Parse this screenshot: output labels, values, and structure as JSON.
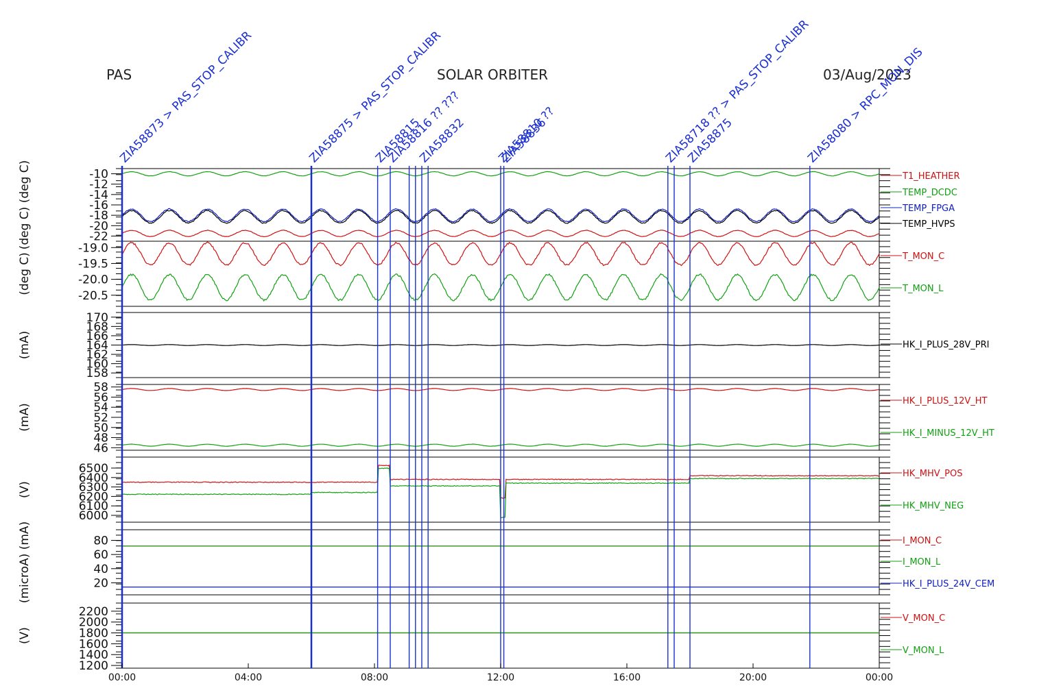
{
  "header": {
    "left": "PAS",
    "center": "SOLAR ORBITER",
    "right": "03/Aug/2023"
  },
  "x_axis": {
    "ticks": [
      "00:00",
      "04:00",
      "08:00",
      "12:00",
      "16:00",
      "20:00",
      "00:00"
    ],
    "range_hours": [
      0,
      24
    ]
  },
  "colors": {
    "red": "#d01010",
    "green": "#10a010",
    "blue": "#1020c0",
    "black": "#000000",
    "annotation": "#1a2fd0"
  },
  "annotations": {
    "event_hours": [
      0.0,
      6.0,
      8.1,
      8.5,
      9.1,
      9.3,
      9.5,
      9.7,
      12.0,
      12.1,
      17.3,
      17.5,
      18.0,
      21.8
    ],
    "labels": [
      {
        "hour": 0.0,
        "text": "ZIA58873 > PAS_STOP_CALIBR"
      },
      {
        "hour": 6.0,
        "text": "ZIA58875 > PAS_STOP_CALIBR"
      },
      {
        "hour": 8.1,
        "text": "ZIA58815"
      },
      {
        "hour": 8.5,
        "text": "ZIA58816 ?? ???"
      },
      {
        "hour": 9.5,
        "text": "ZIA58832"
      },
      {
        "hour": 12.0,
        "text": "ZIA58810 ??"
      },
      {
        "hour": 12.1,
        "text": "ZIA58836"
      },
      {
        "hour": 17.3,
        "text": "ZIA58718 ?? > PAS_STOP_CALIBR"
      },
      {
        "hour": 18.0,
        "text": "ZIA58875"
      },
      {
        "hour": 21.8,
        "text": "ZIA58080 > RPC_MON_DIS"
      }
    ]
  },
  "chart_data": [
    {
      "type": "line",
      "ylabel": "(deg C) (deg C)",
      "ylim": [
        -23,
        -9
      ],
      "yticks": [
        "-10",
        "-12",
        "-14",
        "-16",
        "-18",
        "-20",
        "-22"
      ],
      "series": [
        {
          "name": "T1_HEATHER",
          "color": "#d01010",
          "mean": -21.5,
          "amp": 0.6
        },
        {
          "name": "TEMP_DCDC",
          "color": "#10a010",
          "mean": -10.0,
          "amp": 0.4
        },
        {
          "name": "TEMP_FPGA",
          "color": "#1020c0",
          "mean": -18.0,
          "amp": 1.2
        },
        {
          "name": "TEMP_HVPS",
          "color": "#000000",
          "mean": -18.3,
          "amp": 1.2
        }
      ]
    },
    {
      "type": "line",
      "ylabel": "(deg C)",
      "ylim": [
        -20.85,
        -18.8
      ],
      "yticks": [
        "-19.0",
        "-19.5",
        "-20.0",
        "-20.5"
      ],
      "series": [
        {
          "name": "T_MON_C",
          "color": "#d01010",
          "mean": -19.2,
          "amp": 0.35
        },
        {
          "name": "T_MON_L",
          "color": "#10a010",
          "mean": -20.25,
          "amp": 0.4
        }
      ]
    },
    {
      "type": "line",
      "ylabel": "(mA)",
      "ylim": [
        157,
        171
      ],
      "yticks": [
        "170",
        "168",
        "166",
        "164",
        "162",
        "160",
        "158"
      ],
      "series": [
        {
          "name": "HK_I_PLUS_28V_PRI",
          "color": "#000000",
          "mean": 164.0,
          "amp": 0.1
        }
      ]
    },
    {
      "type": "line",
      "ylabel": "(mA)",
      "ylim": [
        45.5,
        58.5
      ],
      "yticks": [
        "58",
        "56",
        "54",
        "52",
        "50",
        "48",
        "46"
      ],
      "series": [
        {
          "name": "HK_I_PLUS_12V_HT",
          "color": "#d01010",
          "mean": 57.5,
          "amp": 0.2
        },
        {
          "name": "HK_I_MINUS_12V_HT",
          "color": "#10a010",
          "mean": 46.5,
          "amp": 0.2
        }
      ]
    },
    {
      "type": "line",
      "ylabel": "(V)",
      "ylim": [
        0,
        7
      ],
      "yticks": [
        "6500",
        "6400",
        "6300",
        "6200",
        "6100",
        "6000"
      ],
      "series": [
        {
          "name": "HK_MHV_POS",
          "color": "#d01010"
        },
        {
          "name": "HK_MHV_NEG",
          "color": "#10a010"
        }
      ]
    },
    {
      "type": "line",
      "ylabel": "(microA) (mA)",
      "ylim": [
        3,
        95
      ],
      "yticks": [
        "80",
        "60",
        "40",
        "20"
      ],
      "series": [
        {
          "name": "I_MON_C",
          "color": "#d01010",
          "mean": 72
        },
        {
          "name": "I_MON_L",
          "color": "#10a010",
          "mean": 72
        },
        {
          "name": "HK_I_PLUS_24V_CEM",
          "color": "#1020c0",
          "mean": 14
        }
      ]
    },
    {
      "type": "line",
      "ylabel": "(V)",
      "ylim": [
        1150,
        2350
      ],
      "yticks": [
        "2200",
        "2000",
        "1800",
        "1600",
        "1400",
        "1200"
      ],
      "series": [
        {
          "name": "V_MON_C",
          "color": "#d01010",
          "mean": 1800
        },
        {
          "name": "V_MON_L",
          "color": "#10a010",
          "mean": 1800
        }
      ]
    }
  ]
}
